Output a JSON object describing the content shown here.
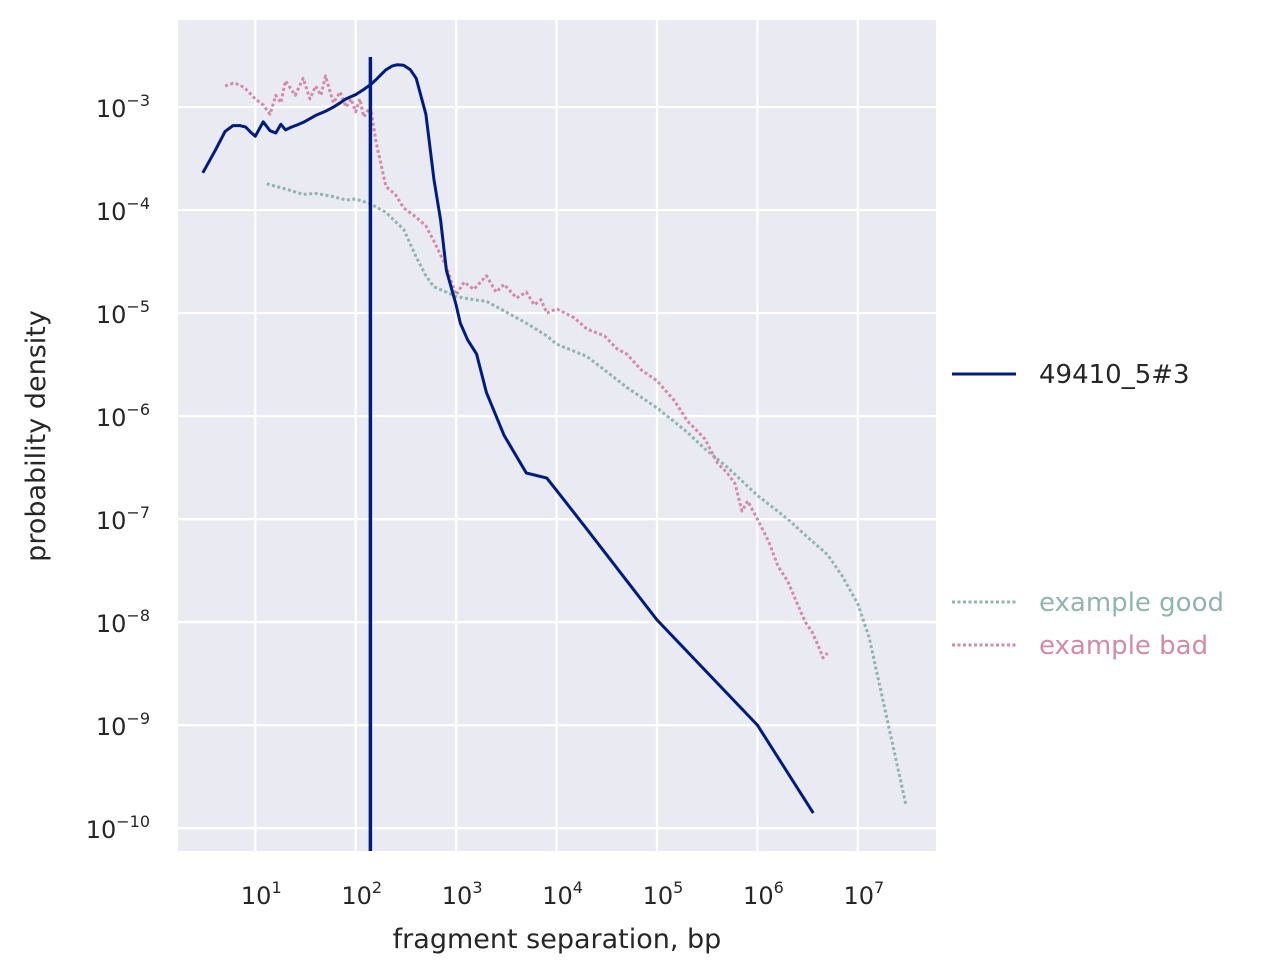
{
  "chart_data": {
    "type": "line",
    "xlabel": "fragment separation, bp",
    "ylabel": "probability density",
    "x_scale": "log",
    "y_scale": "log",
    "xlim": [
      1.7,
      60000000
    ],
    "ylim": [
      6e-11,
      0.007
    ],
    "grid": true,
    "x_ticks": [
      {
        "base": "10",
        "exp": "1",
        "value": 10
      },
      {
        "base": "10",
        "exp": "2",
        "value": 100
      },
      {
        "base": "10",
        "exp": "3",
        "value": 1000
      },
      {
        "base": "10",
        "exp": "4",
        "value": 10000
      },
      {
        "base": "10",
        "exp": "5",
        "value": 100000
      },
      {
        "base": "10",
        "exp": "6",
        "value": 1000000
      },
      {
        "base": "10",
        "exp": "7",
        "value": 10000000
      }
    ],
    "y_ticks": [
      {
        "base": "10",
        "exp": "−3",
        "value": 0.001
      },
      {
        "base": "10",
        "exp": "−4",
        "value": 0.0001
      },
      {
        "base": "10",
        "exp": "−5",
        "value": 1e-05
      },
      {
        "base": "10",
        "exp": "−6",
        "value": 1e-06
      },
      {
        "base": "10",
        "exp": "−7",
        "value": 1e-07
      },
      {
        "base": "10",
        "exp": "−8",
        "value": 1e-08
      },
      {
        "base": "10",
        "exp": "−9",
        "value": 1e-09
      },
      {
        "base": "10",
        "exp": "−10",
        "value": 1e-10
      }
    ],
    "vline": {
      "x": 140,
      "color": "#001c7f"
    },
    "legend": [
      {
        "label": "49410_5#3",
        "color": "#001c7f",
        "style": "solid",
        "placement": "right"
      },
      {
        "label": "example good",
        "color": "#8fb5ae",
        "style": "dotted",
        "placement": "right"
      },
      {
        "label": "example bad",
        "color": "#d48aa7",
        "style": "dotted",
        "placement": "right"
      }
    ],
    "series": [
      {
        "name": "49410_5#3",
        "color": "#001c7f",
        "style": "solid",
        "x": [
          3,
          4,
          5,
          6,
          7,
          8,
          9,
          10,
          12,
          14,
          16,
          18,
          20,
          23,
          26,
          30,
          35,
          40,
          50,
          60,
          70,
          80,
          100,
          120,
          140,
          160,
          180,
          200,
          230,
          260,
          300,
          350,
          400,
          500,
          600,
          700,
          800,
          1000,
          1100,
          1300,
          1600,
          2000,
          3000,
          5000,
          8000,
          10000,
          20000,
          100000,
          1000000,
          3600000
        ],
        "y": [
          0.00023,
          0.00038,
          0.00058,
          0.00066,
          0.00066,
          0.00064,
          0.00057,
          0.00052,
          0.00072,
          0.00059,
          0.00056,
          0.00068,
          0.0006,
          0.00064,
          0.00067,
          0.00071,
          0.00077,
          0.00083,
          0.00091,
          0.001,
          0.0011,
          0.0012,
          0.00132,
          0.00148,
          0.00165,
          0.00185,
          0.00208,
          0.0023,
          0.0025,
          0.00258,
          0.00255,
          0.0023,
          0.0019,
          0.00085,
          0.0002,
          8e-05,
          2.6e-05,
          1.2e-05,
          8e-06,
          5.5e-06,
          4e-06,
          1.7e-06,
          6.5e-07,
          2.8e-07,
          2.5e-07,
          1.9e-07,
          8e-08,
          1.05e-08,
          1e-09,
          1.4e-10
        ]
      },
      {
        "name": "example good",
        "color": "#8fb5ae",
        "style": "dotted",
        "x": [
          13,
          20,
          30,
          40,
          60,
          80,
          100,
          140,
          200,
          300,
          400,
          500,
          600,
          800,
          1000,
          1500,
          2000,
          3000,
          5000,
          8000,
          10000,
          20000,
          30000,
          50000,
          100000,
          200000,
          300000,
          500000,
          1000000,
          2000000,
          3000000,
          5000000,
          7000000,
          10000000,
          13000000,
          30000000
        ],
        "y": [
          0.00018,
          0.00016,
          0.000142,
          0.000145,
          0.000135,
          0.000125,
          0.000128,
          0.000115,
          9.5e-05,
          6.5e-05,
          3.5e-05,
          2.3e-05,
          1.8e-05,
          1.6e-05,
          1.45e-05,
          1.35e-05,
          1.3e-05,
          1.05e-05,
          8e-06,
          6e-06,
          5e-06,
          3.8e-06,
          2.8e-06,
          1.9e-06,
          1.2e-06,
          7e-07,
          4.8e-07,
          3.2e-07,
          1.7e-07,
          1e-07,
          7e-08,
          4.5e-08,
          2.8e-08,
          1.5e-08,
          7e-09,
          1.7e-10
        ]
      },
      {
        "name": "example bad",
        "color": "#d48aa7",
        "style": "dotted",
        "x": [
          5,
          6,
          7,
          8,
          10,
          12,
          14,
          16,
          18,
          20,
          25,
          30,
          35,
          40,
          45,
          50,
          60,
          70,
          80,
          90,
          100,
          110,
          120,
          140,
          160,
          200,
          250,
          300,
          400,
          500,
          600,
          800,
          1000,
          1200,
          1500,
          2000,
          2500,
          3000,
          4000,
          5000,
          6000,
          7000,
          8000,
          10000,
          15000,
          20000,
          30000,
          40000,
          50000,
          70000,
          100000,
          150000,
          200000,
          300000,
          400000,
          500000,
          600000,
          700000,
          800000,
          1000000,
          1300000,
          1600000,
          2000000,
          2500000,
          3000000,
          3500000,
          4000000,
          4500000,
          5000000
        ],
        "y": [
          0.0016,
          0.0017,
          0.00165,
          0.0015,
          0.0012,
          0.00105,
          0.00085,
          0.0013,
          0.0011,
          0.0018,
          0.0013,
          0.0019,
          0.0012,
          0.0016,
          0.0013,
          0.002,
          0.0011,
          0.0014,
          0.001,
          0.0012,
          0.0009,
          0.0012,
          0.0008,
          0.001,
          0.00045,
          0.00017,
          0.00014,
          0.000105,
          8.5e-05,
          7e-05,
          5e-05,
          2.8e-05,
          1.5e-05,
          2e-05,
          1.7e-05,
          2.3e-05,
          1.6e-05,
          1.9e-05,
          1.4e-05,
          1.6e-05,
          1.2e-05,
          1.35e-05,
          1e-05,
          1.1e-05,
          9e-06,
          7e-06,
          6e-06,
          4.5e-06,
          4e-06,
          2.8e-06,
          2.2e-06,
          1.4e-06,
          9e-07,
          6e-07,
          3.5e-07,
          2.8e-07,
          2.2e-07,
          1.2e-07,
          1.5e-07,
          1e-07,
          6e-08,
          3.5e-08,
          2.5e-08,
          1.5e-08,
          1e-08,
          8e-09,
          6e-09,
          4.5e-09,
          5e-09
        ]
      }
    ]
  }
}
